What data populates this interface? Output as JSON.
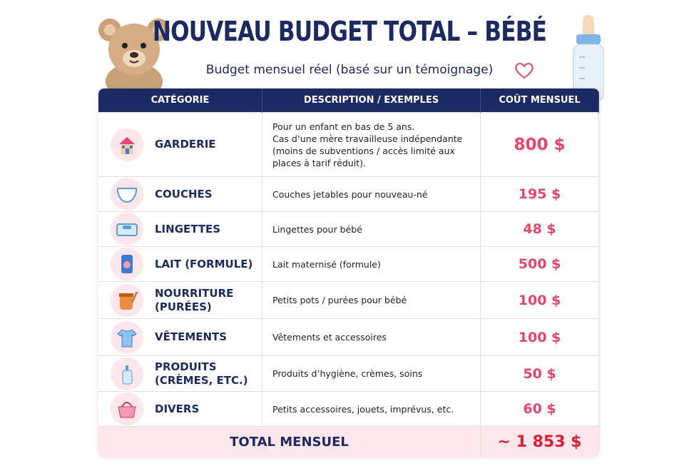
{
  "header": {
    "title": "NOUVEAU BUDGET TOTAL – BÉBÉ",
    "subtitle": "Budget mensuel réel (basé sur un témoignage)"
  },
  "table": {
    "headers": [
      "CATÉGORIE",
      "DESCRIPTION / EXEMPLES",
      "COÛT MENSUEL"
    ],
    "rows": [
      [
        "GARDERIE",
        "Pour un enfant en bas de 5 ans.\nCas d’une mère travailleuse indépendante\n(moins de subventions / accès limité aux\nplaces à tarif réduit).",
        "800 $"
      ],
      [
        "COUCHES",
        "Couches jetables pour nouveau-né",
        "195 $"
      ],
      [
        "LINGETTES",
        "Lingettes pour bébé",
        "48 $"
      ],
      [
        "LAIT (FORMULE)",
        "Lait maternisé (formule)",
        "500 $"
      ],
      [
        "NOURRITURE\n(PURÉES)",
        "Petits pots / purées pour bébé",
        "100 $"
      ],
      [
        "VÊTEMENTS",
        "Vêtements et accessoires",
        "100 $"
      ],
      [
        "PRODUITS\n(CRÈMES, ETC.)",
        "Produits d’hygiène, crèmes, soins",
        "50 $"
      ],
      [
        "DIVERS",
        "Petits accessoires, jouets, imprévus, etc.",
        "60 $"
      ]
    ],
    "total": {
      "label": "TOTAL MENSUEL",
      "value": "~ 1 853 $"
    }
  }
}
